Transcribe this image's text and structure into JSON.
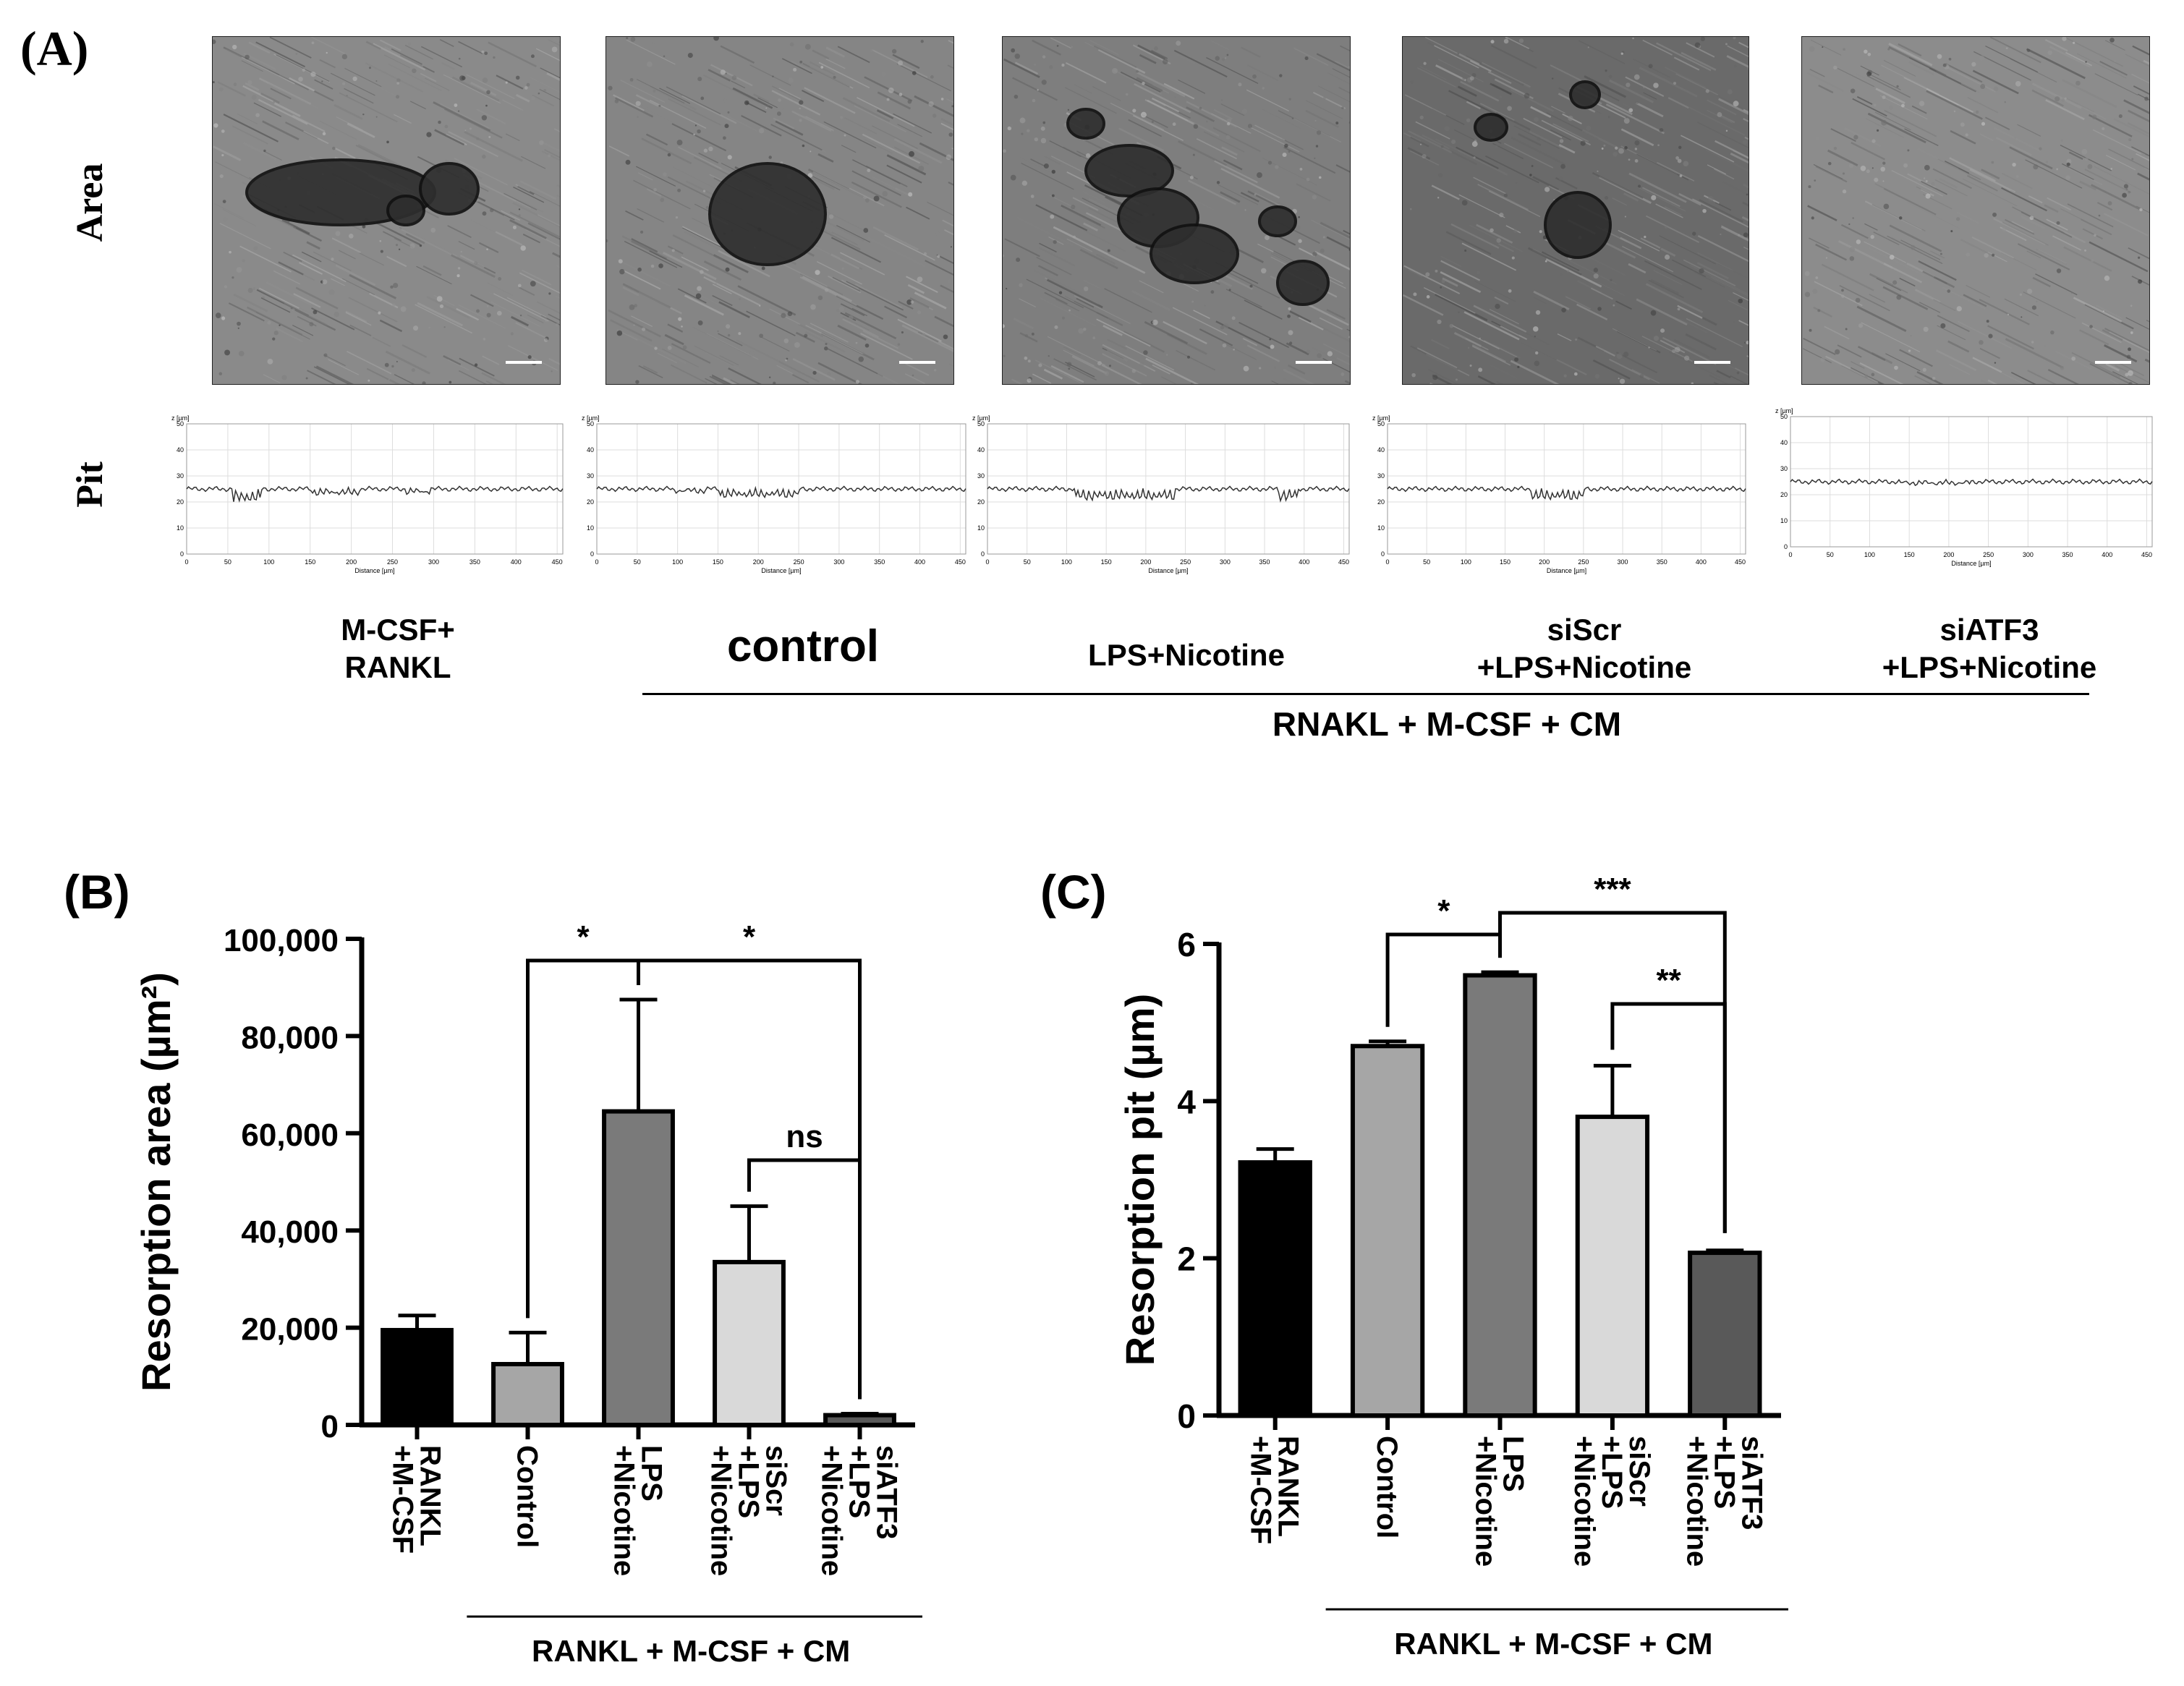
{
  "panel_labels": {
    "a": "(A)",
    "b": "(B)",
    "c": "(C)"
  },
  "panel_a": {
    "row_labels": {
      "area": "Area",
      "pit": "Pit"
    },
    "conditions": [
      {
        "label": "M-CSF+\nRANKL"
      },
      {
        "label": "control"
      },
      {
        "label": "LPS+Nicotine"
      },
      {
        "label": "siScr\n+LPS+Nicotine"
      },
      {
        "label": "siATF3\n+LPS+Nicotine"
      }
    ],
    "group_label": "RNAKL + M-CSF + CM",
    "profile_axis": {
      "y_unit": "z [µm]",
      "y_ticks": [
        "0",
        "10",
        "20",
        "30",
        "40",
        "50"
      ],
      "x_ticks": [
        "0",
        "50",
        "100",
        "150",
        "200",
        "250",
        "300",
        "350",
        "400",
        "450"
      ],
      "x_label": "Distance [µm]"
    }
  },
  "chart_data": [
    {
      "type": "bar",
      "panel": "B",
      "ylabel": "Resorption area (µm²)",
      "ylim": [
        0,
        100000
      ],
      "y_ticks": [
        "0",
        "20,000",
        "40,000",
        "60,000",
        "80,000",
        "100,000"
      ],
      "categories": [
        "RANKL\n+M-CSF",
        "Control",
        "LPS\n+Nicotine",
        "siScr\n+LPS\n+Nicotine",
        "siATF3\n+LPS\n+Nicotine"
      ],
      "values": [
        19500,
        12500,
        64500,
        33500,
        2000
      ],
      "errors": [
        3000,
        6500,
        23000,
        11500,
        300
      ],
      "colors": [
        "#000000",
        "#a6a6a6",
        "#7a7a7a",
        "#d9d9d9",
        "#595959"
      ],
      "group_label": "RANKL  + M-CSF  + CM",
      "significance": [
        {
          "text": "*",
          "from": 1,
          "to": 2
        },
        {
          "text": "*",
          "from": 2,
          "to": 4
        },
        {
          "text": "ns",
          "from": 3,
          "to": 4
        }
      ]
    },
    {
      "type": "bar",
      "panel": "C",
      "ylabel": "Resorption pit (µm)",
      "ylim": [
        0,
        6
      ],
      "y_ticks": [
        "0",
        "2",
        "4",
        "6"
      ],
      "categories": [
        "RANKL\n+M-CSF",
        "Control",
        "LPS\n+Nicotine",
        "siScr\n+LPS\n+Nicotine",
        "siATF3\n+LPS\n+Nicotine"
      ],
      "values": [
        3.22,
        4.7,
        5.6,
        3.8,
        2.07
      ],
      "errors": [
        0.17,
        0.06,
        0.04,
        0.65,
        0.03
      ],
      "colors": [
        "#000000",
        "#a6a6a6",
        "#7a7a7a",
        "#d9d9d9",
        "#595959"
      ],
      "group_label": "RANKL  + M-CSF  + CM",
      "significance": [
        {
          "text": "*",
          "from": 1,
          "to": 2
        },
        {
          "text": "***",
          "from": 2,
          "to": 4
        },
        {
          "text": "**",
          "from": 3,
          "to": 4
        }
      ]
    }
  ]
}
